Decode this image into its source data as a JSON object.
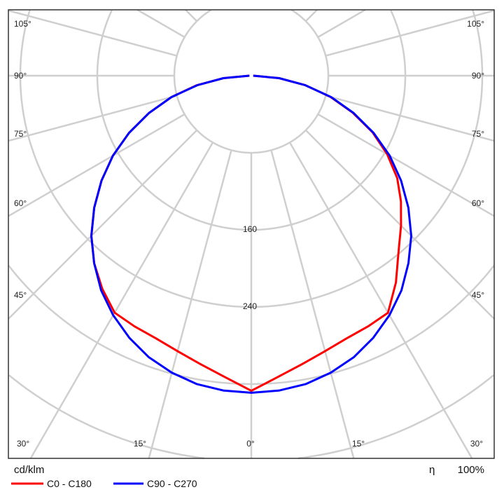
{
  "chart_data": {
    "type": "polar",
    "unit_label": "cd/klm",
    "efficiency_symbol": "η",
    "efficiency_value": "100%",
    "radial_ticks": [
      80,
      160,
      240,
      320,
      400,
      480
    ],
    "radial_tick_labels": [
      "160",
      "240"
    ],
    "angle_labels": {
      "left": [
        "105°",
        "90°",
        "75°",
        "60°",
        "45°"
      ],
      "right": [
        "105°",
        "90°",
        "75°",
        "60°",
        "45°"
      ],
      "bottom": [
        "30°",
        "15°",
        "0°",
        "15°",
        "30°"
      ]
    },
    "angles": [
      0,
      5,
      10,
      15,
      20,
      25,
      30,
      35,
      40,
      45,
      50,
      55,
      60,
      65,
      70,
      75,
      80,
      85,
      90
    ],
    "series": [
      {
        "name": "C0 - C180",
        "color": "#ff0000",
        "right_values": [
          327,
          314,
          304,
          296,
          290,
          287,
          284,
          262,
          238,
          220,
          203,
          185,
          163,
          139,
          112,
          85,
          57,
          29,
          2
        ],
        "left_values": [
          327,
          314,
          304,
          296,
          290,
          287,
          284,
          270,
          254,
          235,
          213,
          190,
          166,
          140,
          113,
          86,
          58,
          29,
          2
        ]
      },
      {
        "name": "C90 - C270",
        "color": "#0000ff",
        "right_values": [
          329,
          328,
          325,
          319,
          311,
          300,
          287,
          272,
          254,
          235,
          213,
          190,
          166,
          140,
          113,
          86,
          57,
          29,
          2
        ],
        "left_values": [
          329,
          328,
          325,
          319,
          311,
          300,
          287,
          272,
          254,
          235,
          213,
          190,
          166,
          140,
          113,
          86,
          57,
          29,
          2
        ]
      }
    ],
    "grid": true,
    "legend_placement": "bottom-left"
  }
}
